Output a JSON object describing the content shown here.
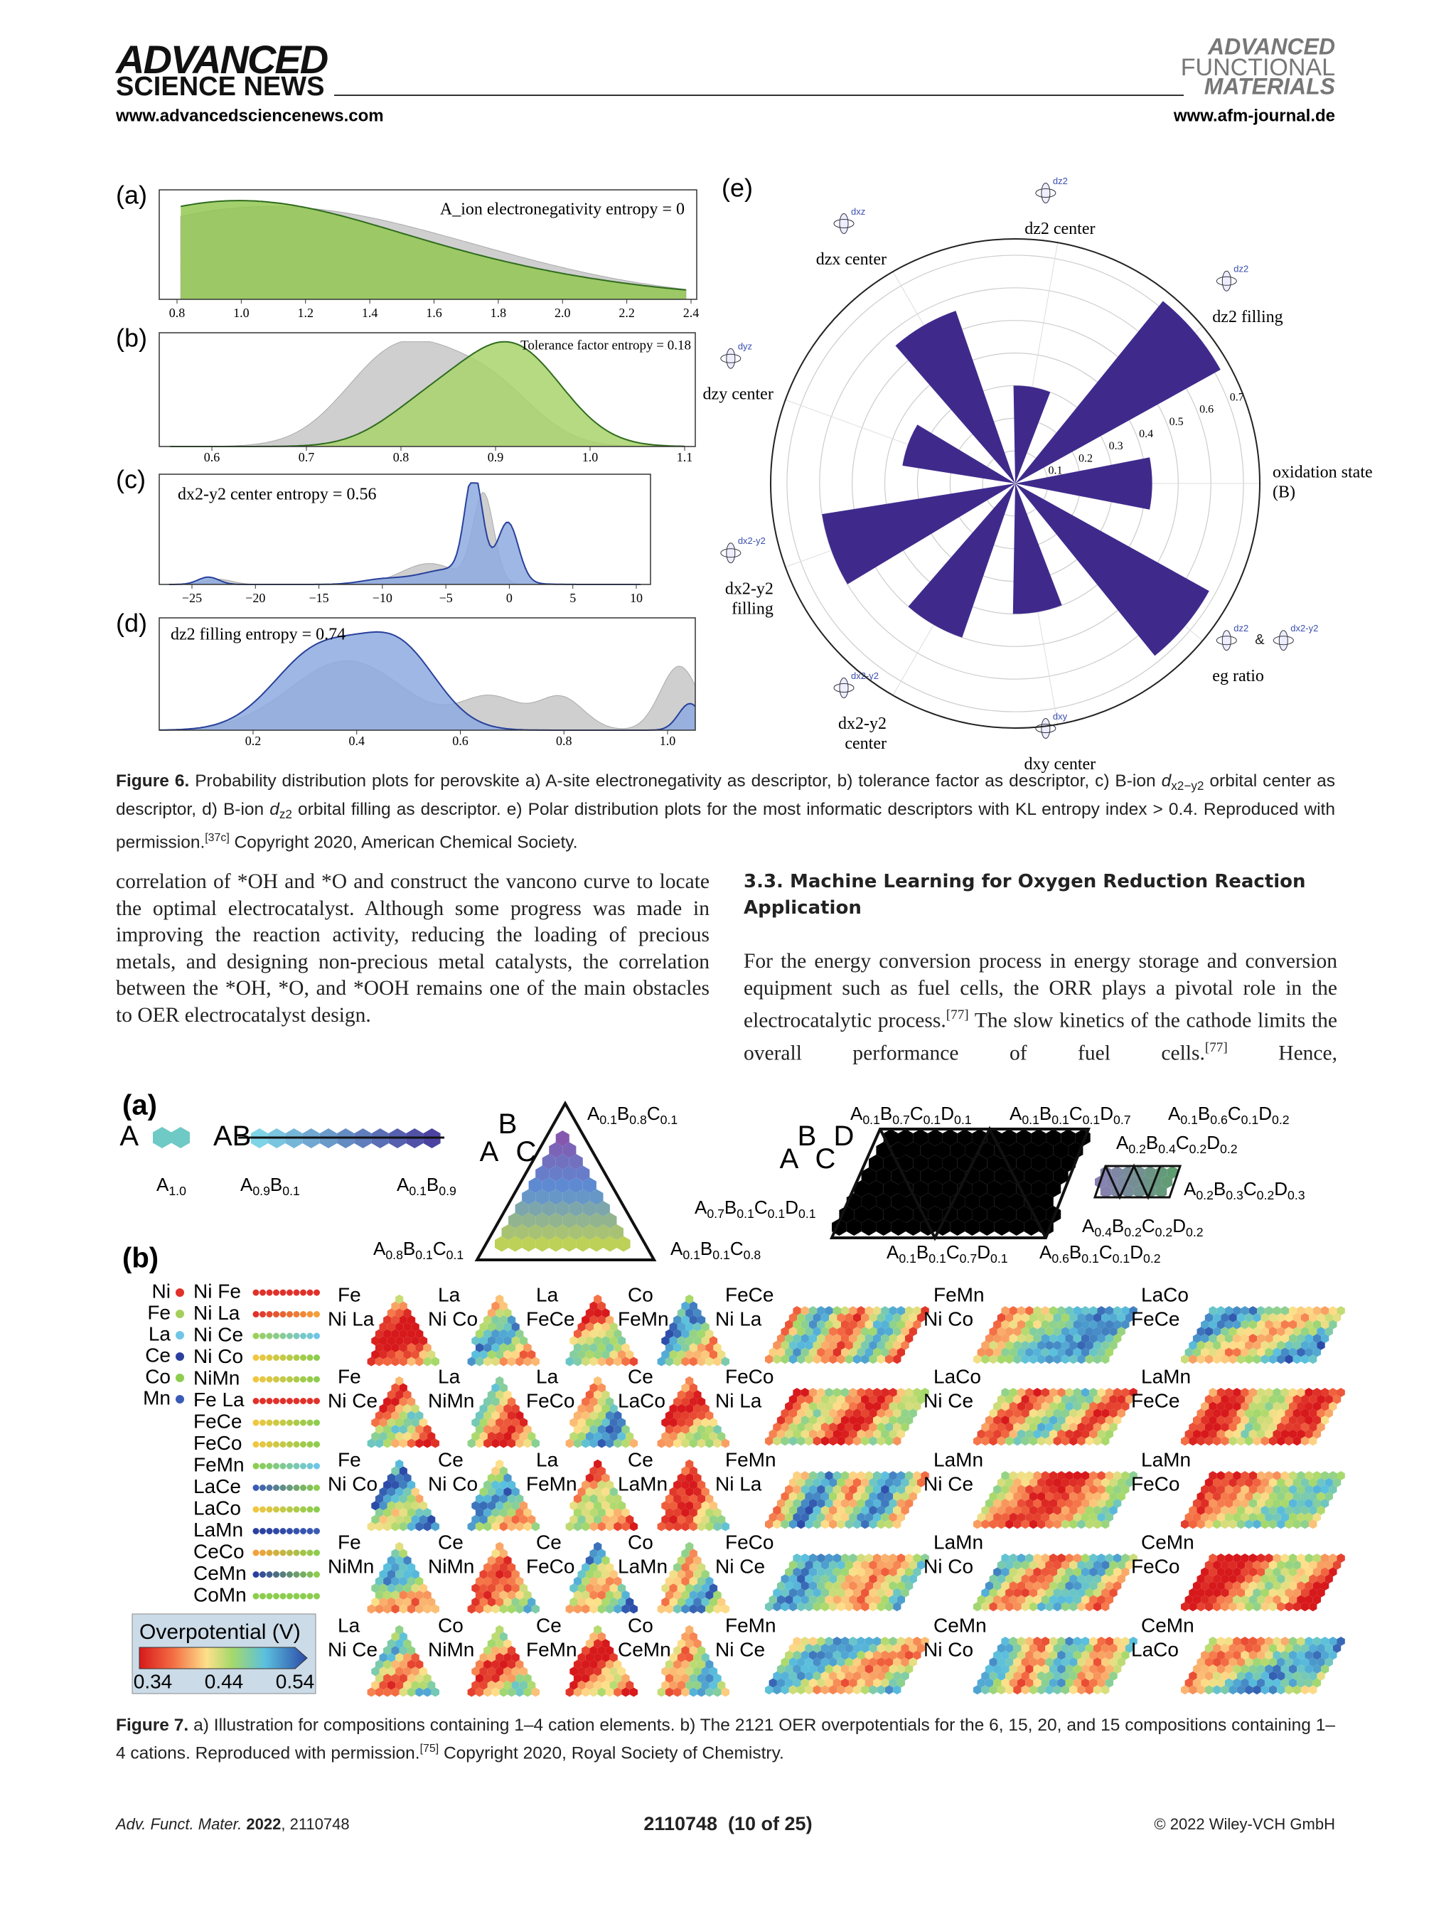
{
  "header": {
    "brand": "ADVANCED",
    "brand_sub": "SCIENCE NEWS",
    "url": "www.advancedsciencenews.com",
    "journal": [
      "ADVANCED",
      "FUNCTIONAL",
      "MATERIALS"
    ],
    "journal_url": "www.afm-journal.de"
  },
  "figure6": {
    "panels": [
      {
        "label": "(a)",
        "title": "A_ion electronegativity entropy = 0",
        "xticks": [
          "0.8",
          "1.0",
          "1.2",
          "1.4",
          "1.6",
          "1.8",
          "2.0",
          "2.2",
          "2.4"
        ]
      },
      {
        "label": "(b)",
        "title": "Tolerance factor entropy = 0.18",
        "xticks": [
          "0.6",
          "0.7",
          "0.8",
          "0.9",
          "1.0",
          "1.1"
        ]
      },
      {
        "label": "(c)",
        "title": "dx2-y2 center entropy = 0.56",
        "xticks": [
          "−25",
          "−20",
          "−15",
          "−10",
          "−5",
          "0",
          "5",
          "10"
        ]
      },
      {
        "label": "(d)",
        "title": "dz2 filling entropy = 0.74",
        "xticks": [
          "0.2",
          "0.4",
          "0.6",
          "0.8",
          "1.0"
        ]
      }
    ],
    "polar": {
      "label": "(e)",
      "rlim": [
        0,
        0.75
      ],
      "rings": [
        0.1,
        0.2,
        0.3,
        0.4,
        0.5,
        0.6,
        0.7
      ],
      "color": "#3f2a8c",
      "axes": [
        {
          "lines": [
            "oxidation state",
            "(B)"
          ],
          "icons": [],
          "value": 0.42
        },
        {
          "lines": [
            "dz2 filling"
          ],
          "icons": [
            "dz2"
          ],
          "value": 0.72
        },
        {
          "lines": [
            "dz2 center"
          ],
          "icons": [
            "dz2"
          ],
          "value": 0.3
        },
        {
          "lines": [
            "dzx center"
          ],
          "icons": [
            "dxz"
          ],
          "value": 0.56
        },
        {
          "lines": [
            "dzy center"
          ],
          "icons": [
            "dyz"
          ],
          "value": 0.35
        },
        {
          "lines": [
            "dx2-y2",
            "filling"
          ],
          "icons": [
            "dx2-y2"
          ],
          "value": 0.6
        },
        {
          "lines": [
            "dx2-y2",
            "center"
          ],
          "icons": [
            "dx2-y2"
          ],
          "value": 0.5
        },
        {
          "lines": [
            "dxy center"
          ],
          "icons": [
            "dxy"
          ],
          "value": 0.4
        },
        {
          "lines": [
            "eg ratio"
          ],
          "icons": [
            "dz2",
            "&",
            "dx2-y2"
          ],
          "value": 0.68
        }
      ]
    },
    "caption": [
      "Figure 6.",
      " Probability distribution plots for perovskite a) A-site electronegativity as descriptor, b) tolerance factor as descriptor, c) B-ion ",
      "d",
      "x2−y2",
      " orbital center as descriptor, d) B-ion ",
      "d",
      "z2",
      " orbital filling as descriptor. e) Polar distribution plots for the most informatic descriptors with KL entropy index > 0.4. Reproduced with permission.",
      "[37c]",
      " Copyright 2020, American Chemical Society."
    ]
  },
  "body": {
    "left": "correlation of *OH and *O and construct the vancono curve to locate the optimal electrocatalyst. Although some progress was made in improving the reaction activity, reducing the loading of precious metals, and designing non-precious metal catalysts, the correlation between the *OH, *O, and *OOH remains one of the main obstacles to OER electrocatalyst design.",
    "heading": "3.3. Machine Learning for Oxygen Reduction Reaction Application",
    "right": [
      "For the energy conversion process in energy storage and conversion equipment such as fuel cells, the ORR plays a pivotal role in the electrocatalytic process.",
      "[77]",
      " The slow kinetics of the cathode limits the overall performance of fuel cells.",
      "[77]",
      " Hence,"
    ]
  },
  "figure7": {
    "a": {
      "label": "(a)",
      "unary": [
        "A",
        "A1.0"
      ],
      "binary": [
        "AB",
        "A0.9B0.1",
        "A0.1B0.9"
      ],
      "ternary": [
        "B",
        "A",
        "C",
        "A0.1B0.8C0.1",
        "A0.8B0.1C0.1",
        "A0.1B0.1C0.8"
      ],
      "quaternary": [
        "B",
        "D",
        "A",
        "C",
        "A0.1B0.7C0.1D0.1",
        "A0.1B0.1C0.1D0.7",
        "A0.1B0.6C0.1D0.2",
        "A0.2B0.4C0.2D0.2",
        "A0.2B0.3C0.2D0.3",
        "A0.7B0.1C0.1D0.1",
        "A0.4B0.2C0.2D0.2",
        "A0.1B0.1C0.7D0.1",
        "A0.6B0.1C0.1D0.2"
      ]
    },
    "b": {
      "label": "(b)",
      "singles": [
        {
          "name": "Ni",
          "color": "#e0312b"
        },
        {
          "name": "Fe",
          "color": "#a5cf5a"
        },
        {
          "name": "La",
          "color": "#6ec6e6"
        },
        {
          "name": "Ce",
          "color": "#2b3f9e"
        },
        {
          "name": "Co",
          "color": "#8ccd4e"
        },
        {
          "name": "Mn",
          "color": "#3a5bb5"
        }
      ],
      "pairs": [
        {
          "name": "Ni Fe",
          "colors": [
            "#e0312b",
            "#e0312b"
          ]
        },
        {
          "name": "Ni La",
          "colors": [
            "#e0312b",
            "#f3a13a"
          ]
        },
        {
          "name": "Ni Ce",
          "colors": [
            "#9bd05a",
            "#6ec6e6"
          ]
        },
        {
          "name": "Ni Co",
          "colors": [
            "#f0c640",
            "#8ccd4e"
          ]
        },
        {
          "name": "NiMn",
          "colors": [
            "#f0c640",
            "#8ccd4e"
          ]
        },
        {
          "name": "Fe La",
          "colors": [
            "#e0312b",
            "#e0312b"
          ]
        },
        {
          "name": "FeCe",
          "colors": [
            "#f0c640",
            "#8ccd4e"
          ]
        },
        {
          "name": "FeCo",
          "colors": [
            "#f0c640",
            "#8ccd4e"
          ]
        },
        {
          "name": "FeMn",
          "colors": [
            "#8ccd4e",
            "#6ec6e6"
          ]
        },
        {
          "name": "LaCe",
          "colors": [
            "#3a5bb5",
            "#8ccd4e"
          ]
        },
        {
          "name": "LaCo",
          "colors": [
            "#f0c640",
            "#8ccd4e"
          ]
        },
        {
          "name": "LaMn",
          "colors": [
            "#2b3f9e",
            "#3a5bb5"
          ]
        },
        {
          "name": "CeCo",
          "colors": [
            "#f3a13a",
            "#8ccd4e"
          ]
        },
        {
          "name": "CeMn",
          "colors": [
            "#2b3f9e",
            "#8ccd4e"
          ]
        },
        {
          "name": "CoMn",
          "colors": [
            "#8ccd4e",
            "#8ccd4e"
          ]
        }
      ],
      "colorbar": {
        "title": "Overpotential (V)",
        "ticks": [
          "0.34",
          "0.44",
          "0.54"
        ]
      },
      "plots": [
        [
          [
            "Fe",
            "Ni La"
          ],
          [
            "La",
            "Ni Co"
          ],
          [
            "La",
            "FeCe"
          ],
          [
            "Co",
            "FeMn"
          ],
          [
            "FeCe",
            "Ni La"
          ],
          [
            "FeMn",
            "Ni Co"
          ],
          [
            "LaCo",
            "FeCe"
          ]
        ],
        [
          [
            "Fe",
            "Ni Ce"
          ],
          [
            "La",
            "NiMn"
          ],
          [
            "La",
            "FeCo"
          ],
          [
            "Ce",
            "LaCo"
          ],
          [
            "FeCo",
            "Ni La"
          ],
          [
            "LaCo",
            "Ni Ce"
          ],
          [
            "LaMn",
            "FeCe"
          ]
        ],
        [
          [
            "Fe",
            "Ni Co"
          ],
          [
            "Ce",
            "Ni Co"
          ],
          [
            "La",
            "FeMn"
          ],
          [
            "Ce",
            "LaMn"
          ],
          [
            "FeMn",
            "Ni La"
          ],
          [
            "LaMn",
            "Ni Ce"
          ],
          [
            "LaMn",
            "FeCo"
          ]
        ],
        [
          [
            "Fe",
            "NiMn"
          ],
          [
            "Ce",
            "NiMn"
          ],
          [
            "Ce",
            "FeCo"
          ],
          [
            "Co",
            "LaMn"
          ],
          [
            "FeCo",
            "Ni Ce"
          ],
          [
            "LaMn",
            "Ni Co"
          ],
          [
            "CeMn",
            "FeCo"
          ]
        ],
        [
          [
            "La",
            "Ni Ce"
          ],
          [
            "Co",
            "NiMn"
          ],
          [
            "Ce",
            "FeMn"
          ],
          [
            "Co",
            "CeMn"
          ],
          [
            "FeMn",
            "Ni Ce"
          ],
          [
            "CeMn",
            "Ni Co"
          ],
          [
            "CeMn",
            "LaCo"
          ]
        ]
      ]
    },
    "caption": [
      "Figure 7.",
      "  a) Illustration for compositions containing 1–4 cation elements. b) The 2121 OER overpotentials for the 6, 15, 20, and 15 compositions containing 1–4 cations. Reproduced with permission.",
      "[75]",
      " Copyright 2020, Royal Society of Chemistry."
    ]
  },
  "footer": {
    "journal": "Adv. Funct. Mater.",
    "year": "2022",
    "article": ", 2110748",
    "page": "2110748  (10 of 25)",
    "copyright": "© 2022 Wiley-VCH GmbH"
  }
}
